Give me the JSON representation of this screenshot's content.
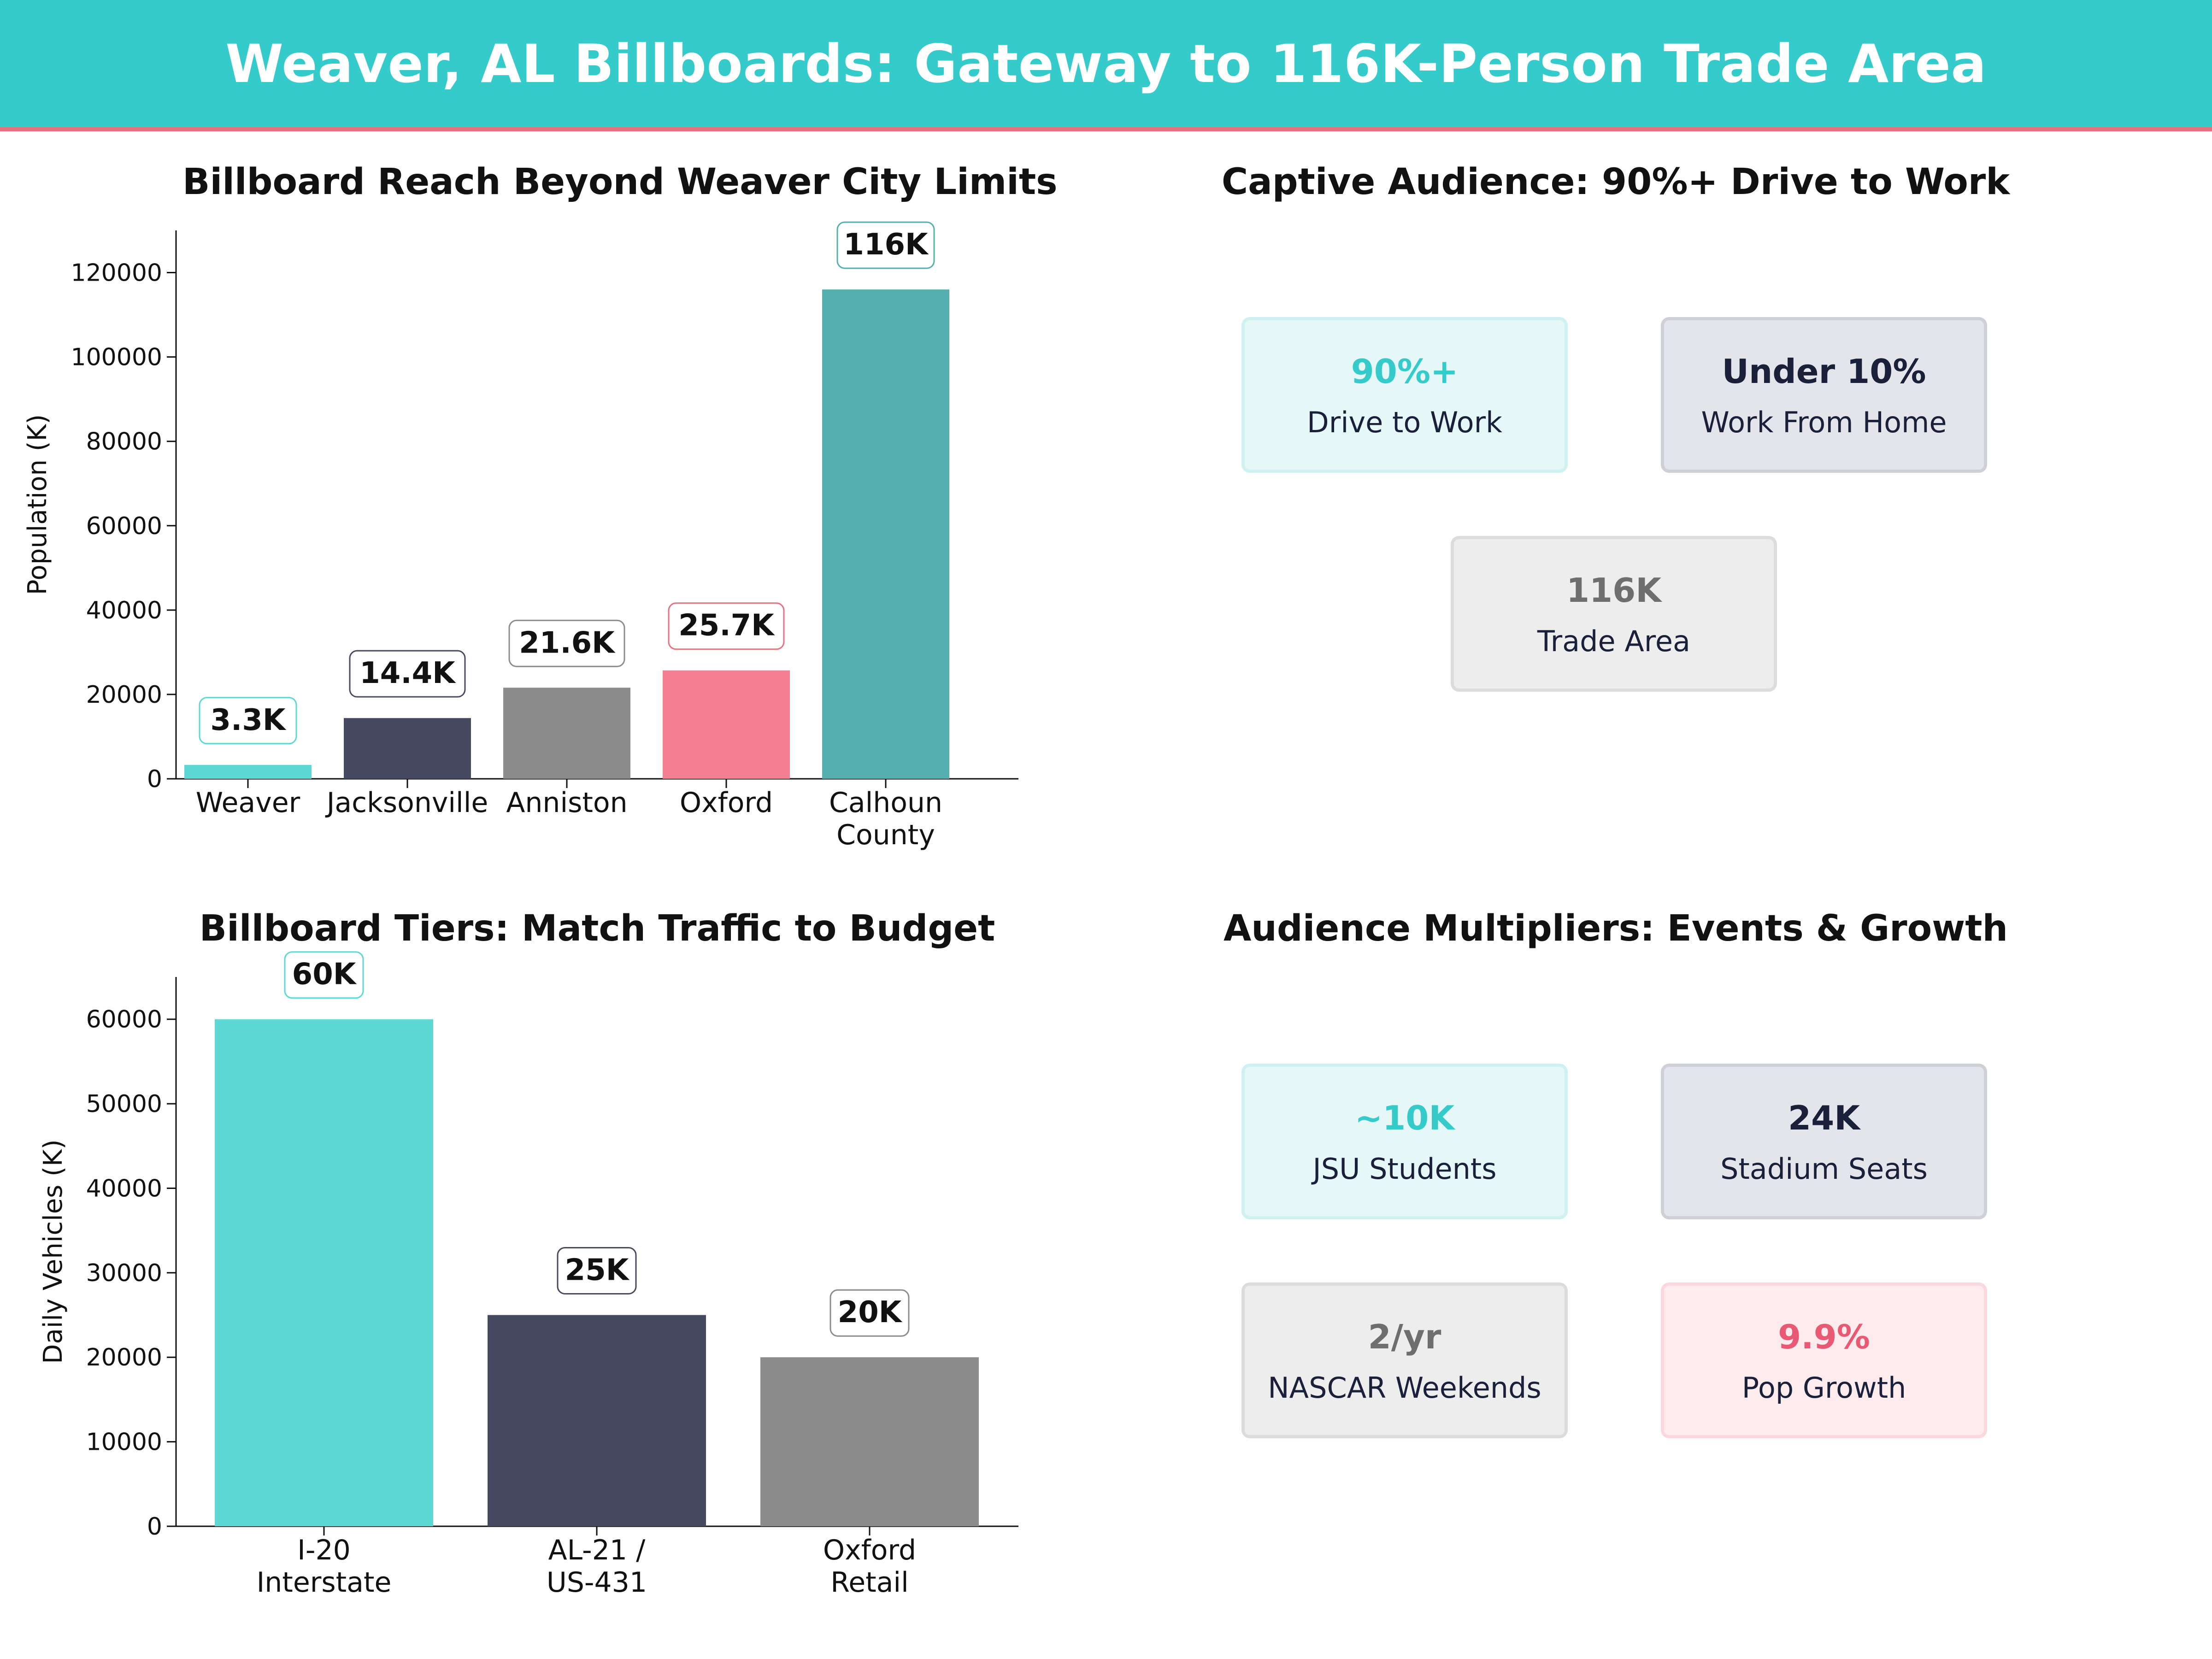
{
  "header": {
    "title": "Weaver, AL Billboards: Gateway to 116K-Person Trade Area"
  },
  "colors": {
    "teal": "#36CBCB",
    "navy": "#454A60",
    "gray": "#8C8C8C",
    "pink": "#F47E92",
    "dark_teal": "#56AFAF",
    "accent_line": "#E8707F"
  },
  "chart_data": [
    {
      "type": "bar",
      "title": "Billboard Reach Beyond Weaver City Limits",
      "xlabel": "",
      "ylabel": "Population (K)",
      "ylim": [
        0,
        130000
      ],
      "yticks": [
        "0",
        "20000",
        "40000",
        "60000",
        "80000",
        "100000",
        "120000"
      ],
      "categories": [
        "Weaver",
        "Jacksonville",
        "Anniston",
        "Oxford",
        "Calhoun\nCounty"
      ],
      "values": [
        3300,
        14400,
        21600,
        25700,
        116000
      ],
      "data_labels": [
        "3.3K",
        "14.4K",
        "21.6K",
        "25.7K",
        "116K"
      ],
      "bar_colors": [
        "#5DD8D4",
        "#454A60",
        "#8C8C8C",
        "#F47E92",
        "#56AFAF"
      ],
      "label_border_colors": [
        "#5DD8D4",
        "#454A60",
        "#8C8C8C",
        "#E8707F",
        "#56AFAF"
      ],
      "grid": false
    },
    {
      "type": "bar",
      "title": "Billboard Tiers: Match Traffic to Budget",
      "xlabel": "",
      "ylabel": "Daily Vehicles (K)",
      "ylim": [
        0,
        65000
      ],
      "yticks": [
        "0",
        "10000",
        "20000",
        "30000",
        "40000",
        "50000",
        "60000"
      ],
      "categories": [
        "I-20\nInterstate",
        "AL-21 /\nUS-431",
        "Oxford\nRetail"
      ],
      "values": [
        60000,
        25000,
        20000
      ],
      "data_labels": [
        "60K",
        "25K",
        "20K"
      ],
      "bar_colors": [
        "#5DD8D4",
        "#454A60",
        "#8C8C8C"
      ],
      "label_border_colors": [
        "#5DD8D4",
        "#454A60",
        "#8C8C8C"
      ],
      "grid": false
    }
  ],
  "panels": {
    "captive": {
      "title": "Captive Audience: 90%+ Drive to Work",
      "cards": [
        {
          "value": "90%+",
          "label": "Drive to Work",
          "style": "teal"
        },
        {
          "value": "Under 10%",
          "label": "Work From Home",
          "style": "navy"
        },
        {
          "value": "116K",
          "label": "Trade Area",
          "style": "gray"
        }
      ]
    },
    "multipliers": {
      "title": "Audience Multipliers: Events & Growth",
      "cards": [
        {
          "value": "~10K",
          "label": "JSU Students",
          "style": "teal"
        },
        {
          "value": "24K",
          "label": "Stadium Seats",
          "style": "navy"
        },
        {
          "value": "2/yr",
          "label": "NASCAR Weekends",
          "style": "gray"
        },
        {
          "value": "9.9%",
          "label": "Pop Growth",
          "style": "pink"
        }
      ]
    }
  }
}
